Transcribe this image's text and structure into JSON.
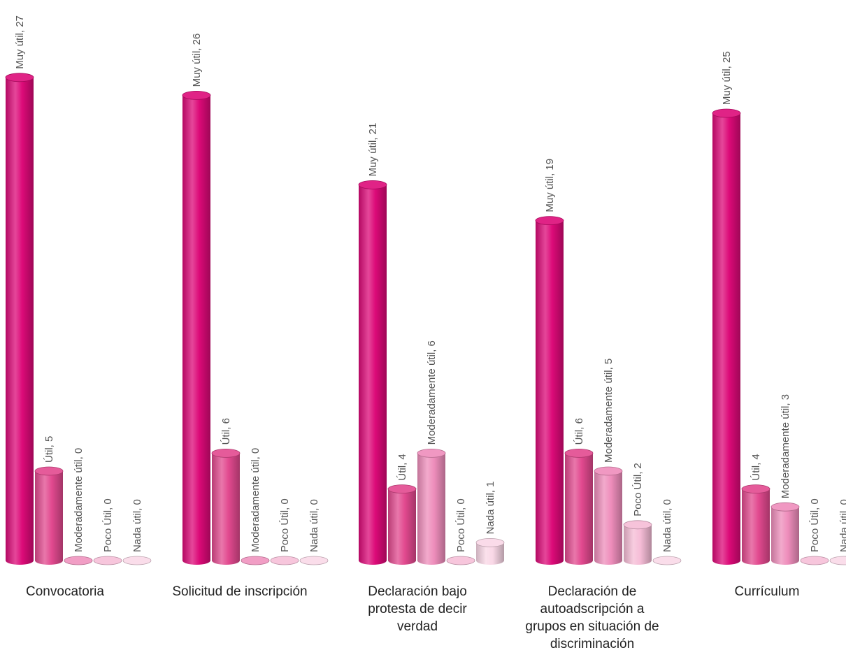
{
  "chart_data": {
    "type": "bar",
    "title": "",
    "xlabel": "",
    "ylabel": "",
    "ylim": [
      0,
      27
    ],
    "grid": false,
    "legend": "none",
    "categories": [
      [
        "Convocatoria"
      ],
      [
        "Solicitud de inscripción"
      ],
      [
        "Declaración  bajo",
        "protesta de decir",
        "verdad"
      ],
      [
        "Declaración de",
        "autoadscripción a",
        "grupos en situación de",
        "discriminación"
      ],
      [
        "Currículum"
      ]
    ],
    "series": [
      {
        "name": "Muy útil",
        "values": [
          27,
          26,
          21,
          19,
          25
        ],
        "color": "#dc0a78",
        "labels": [
          "Muy útil, 27",
          "Muy útil, 26",
          "Muy útil, 21",
          "Muy útil, 19",
          "Muy útil, 25"
        ]
      },
      {
        "name": "Útil",
        "values": [
          5,
          6,
          4,
          6,
          4
        ],
        "color": "#e2498f",
        "labels": [
          "Útil, 5",
          "Útil, 6",
          "Útil, 4",
          "Útil, 6",
          "Útil, 4"
        ]
      },
      {
        "name": "Moderadamente útil",
        "values": [
          0,
          0,
          6,
          5,
          3
        ],
        "color": "#ee8dbb",
        "labels": [
          "Moderadamente útil, 0",
          "Moderadamente útil, 0",
          "Moderadamente útil, 6",
          "Moderadamente útil, 5",
          "Moderadamente útil, 3"
        ]
      },
      {
        "name": "Poco útil",
        "values": [
          0,
          0,
          0,
          2,
          0
        ],
        "color": "#f5bcd6",
        "labels": [
          "Poco Útil, 0",
          "Poco Útil, 0",
          "Poco Útil, 0",
          "Poco Útil, 2",
          "Poco Útil, 0"
        ]
      },
      {
        "name": "Nada útil",
        "values": [
          0,
          0,
          1,
          0,
          0
        ],
        "color": "#f9d7e6",
        "labels": [
          "Nada útil, 0",
          "Nada útil, 0",
          "Nada útil, 1",
          "Nada útil, 0",
          "Nada útil, 0"
        ]
      }
    ]
  }
}
